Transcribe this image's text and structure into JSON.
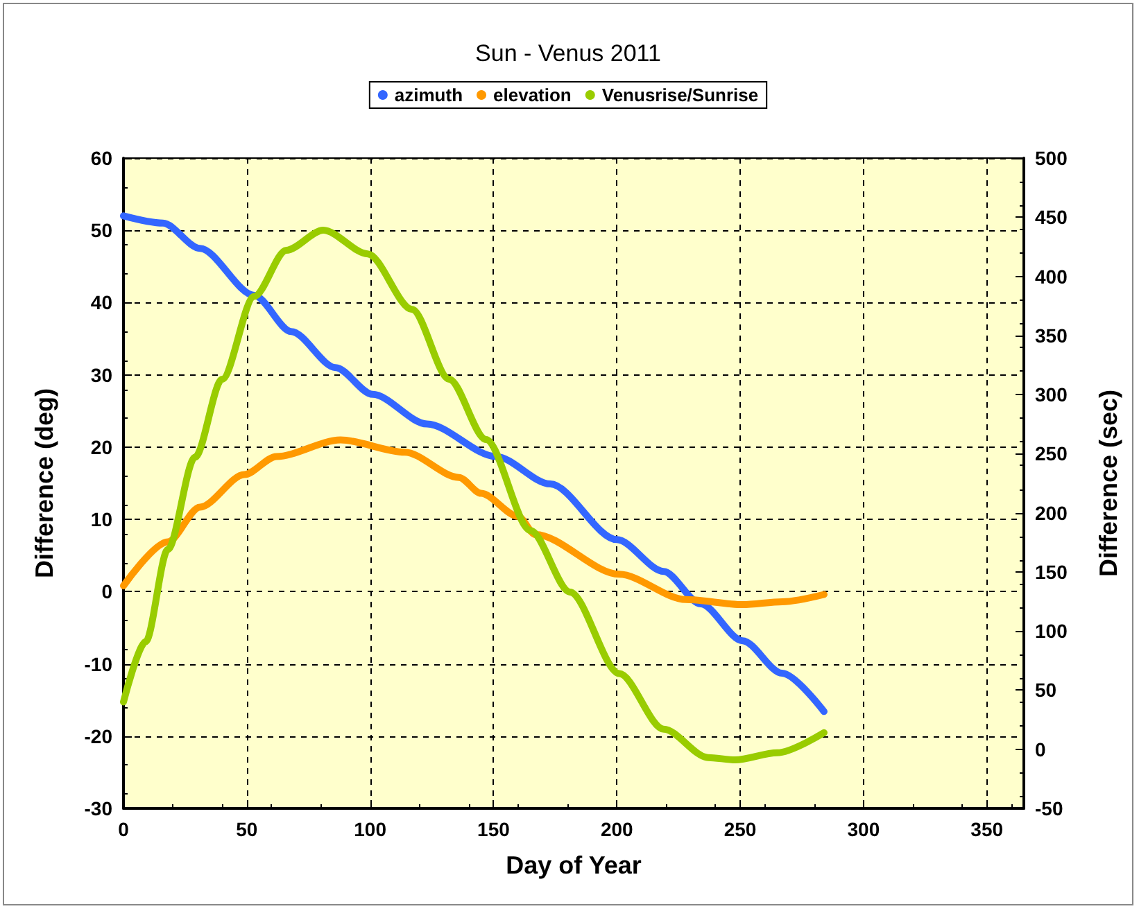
{
  "chart_data": {
    "type": "line",
    "title": "Sun - Venus 2011",
    "xlabel": "Day of Year",
    "ylabel": "Difference (deg)",
    "y2label": "Difference (sec)",
    "xlim": [
      0,
      365
    ],
    "xticks": [
      0,
      50,
      100,
      150,
      200,
      250,
      300,
      350
    ],
    "ylim": [
      -30,
      60
    ],
    "yticks": [
      -30,
      -20,
      -10,
      0,
      10,
      20,
      30,
      40,
      50,
      60
    ],
    "y2lim": [
      -50,
      500
    ],
    "y2ticks": [
      -50,
      0,
      50,
      100,
      150,
      200,
      250,
      300,
      350,
      400,
      450,
      500
    ],
    "grid": true,
    "legend": "top",
    "marker": "none",
    "line_style": "solid",
    "series": [
      {
        "name": "azimuth",
        "color": "#3366ff",
        "x": [
          0,
          16,
          31,
          53,
          68,
          86,
          101,
          123,
          151,
          173,
          200,
          219,
          234,
          251,
          267,
          284
        ],
        "values": [
          52,
          51,
          47.5,
          41,
          36,
          31,
          27.3,
          23.2,
          18.7,
          14.9,
          7.2,
          2.8,
          -1.7,
          -6.8,
          -11.3,
          -16.6
        ]
      },
      {
        "name": "elevation",
        "color": "#ff9900",
        "x": [
          0,
          18,
          31,
          49,
          62,
          88,
          114,
          136,
          145,
          160,
          167,
          201,
          228,
          251,
          267,
          284
        ],
        "values": [
          0.8,
          6.9,
          11.7,
          16.2,
          18.7,
          21,
          19.3,
          15.8,
          13.6,
          10.4,
          7.9,
          2.4,
          -1.1,
          -1.8,
          -1.4,
          -0.4
        ]
      },
      {
        "name": "Venusrise/Sunrise",
        "color": "#99cc00",
        "axis": "y2",
        "x": [
          0,
          9,
          18,
          29,
          40,
          53,
          66,
          81,
          99,
          117,
          132,
          147,
          165,
          181,
          201,
          219,
          237,
          248,
          265,
          284
        ],
        "values": [
          40,
          91,
          169,
          247,
          313,
          383,
          422,
          439,
          419,
          372,
          313,
          262,
          185,
          133,
          64,
          17,
          -7,
          -9,
          -3,
          14
        ]
      }
    ]
  }
}
